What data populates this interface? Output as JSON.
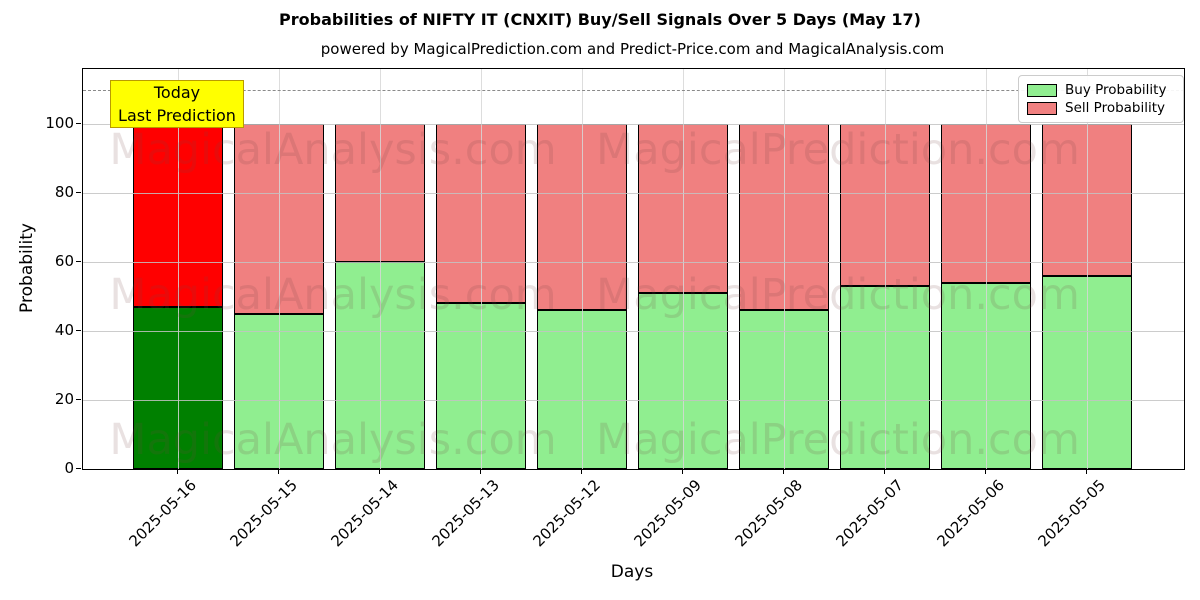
{
  "figure": {
    "title": "Probabilities of NIFTY IT (CNXIT) Buy/Sell Signals Over 5 Days (May 17)",
    "subtitle": "powered by MagicalPrediction.com and Predict-Price.com and MagicalAnalysis.com"
  },
  "chart_data": {
    "type": "bar",
    "stacked": true,
    "title": "Probabilities of NIFTY IT (CNXIT) Buy/Sell Signals Over 5 Days (May 17)",
    "subtitle": "powered by MagicalPrediction.com and Predict-Price.com and MagicalAnalysis.com",
    "xlabel": "Days",
    "ylabel": "Probability",
    "categories": [
      "2025-05-16",
      "2025-05-15",
      "2025-05-14",
      "2025-05-13",
      "2025-05-12",
      "2025-05-09",
      "2025-05-08",
      "2025-05-07",
      "2025-05-06",
      "2025-05-05"
    ],
    "series": [
      {
        "name": "Buy Probability",
        "values": [
          47,
          45,
          60,
          48,
          46,
          51,
          46,
          53,
          54,
          56
        ],
        "color": "#90ee90",
        "highlight_color": "#008000"
      },
      {
        "name": "Sell Probability",
        "values": [
          53,
          55,
          40,
          52,
          54,
          49,
          54,
          47,
          46,
          44
        ],
        "color": "#f08080",
        "highlight_color": "#ff0000"
      }
    ],
    "highlight_index": 0,
    "yticks": [
      0,
      20,
      40,
      60,
      80,
      100
    ],
    "ylim": [
      0,
      116
    ],
    "grid": true,
    "legend_position": "upper right",
    "dashed_line_y": 110,
    "bar_edge_color": "#000000",
    "annotation": {
      "lines": [
        "Today",
        "Last Prediction"
      ],
      "bg_color": "#ffff00",
      "border_color": "#b99b00"
    },
    "watermarks": [
      {
        "text": "MagicalAnalysis.com",
        "x": 333,
        "rows": [
          150,
          295,
          440
        ]
      },
      {
        "text": "MagicalPrediction.com",
        "x": 838,
        "rows": [
          150,
          295,
          440
        ]
      }
    ]
  }
}
